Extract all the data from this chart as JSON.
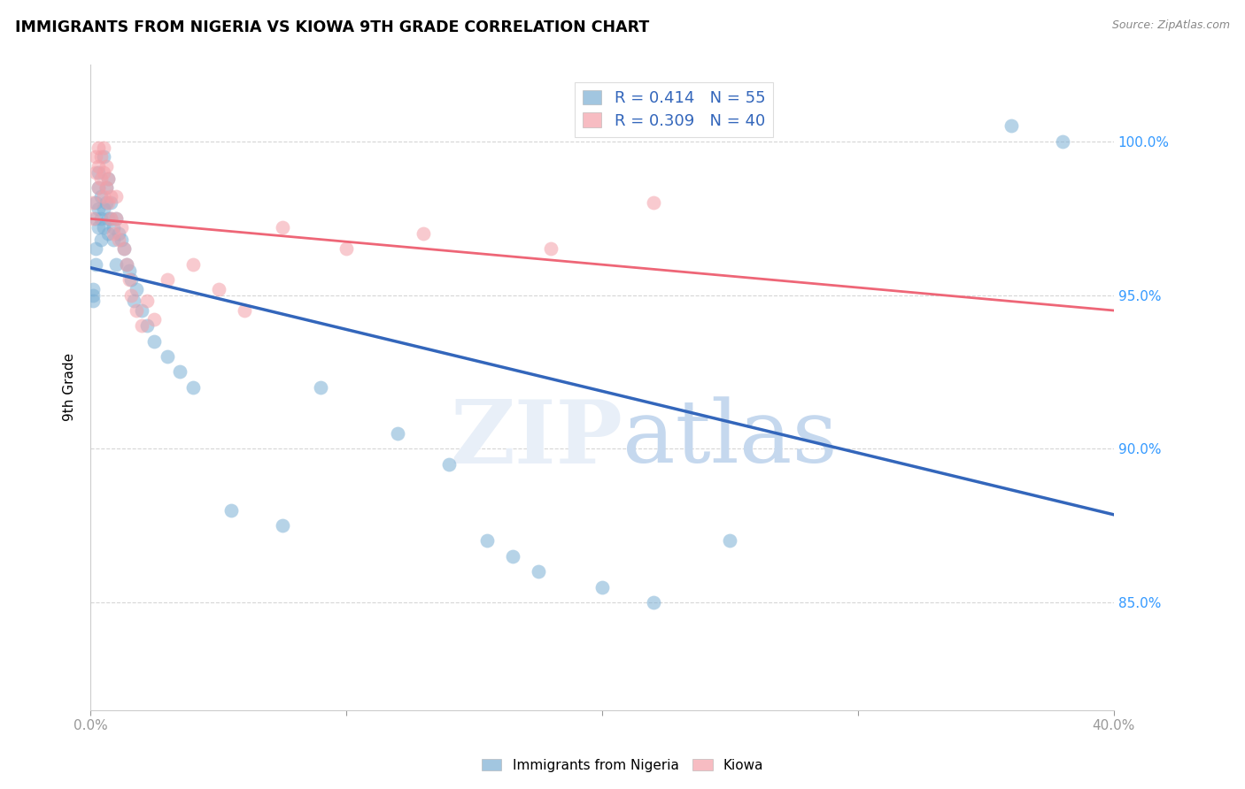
{
  "title": "IMMIGRANTS FROM NIGERIA VS KIOWA 9TH GRADE CORRELATION CHART",
  "source": "Source: ZipAtlas.com",
  "ylabel": "9th Grade",
  "blue_R": 0.414,
  "blue_N": 55,
  "pink_R": 0.309,
  "pink_N": 40,
  "blue_color": "#7BAFD4",
  "pink_color": "#F4A0A8",
  "blue_line_color": "#3366BB",
  "pink_line_color": "#EE6677",
  "blue_x": [
    0.001,
    0.001,
    0.001,
    0.002,
    0.002,
    0.002,
    0.002,
    0.003,
    0.003,
    0.003,
    0.003,
    0.004,
    0.004,
    0.004,
    0.005,
    0.005,
    0.005,
    0.006,
    0.006,
    0.007,
    0.007,
    0.007,
    0.008,
    0.008,
    0.009,
    0.009,
    0.01,
    0.01,
    0.011,
    0.012,
    0.013,
    0.014,
    0.015,
    0.016,
    0.017,
    0.018,
    0.02,
    0.022,
    0.025,
    0.03,
    0.035,
    0.04,
    0.055,
    0.075,
    0.09,
    0.12,
    0.14,
    0.155,
    0.165,
    0.175,
    0.2,
    0.22,
    0.25,
    0.36,
    0.38
  ],
  "blue_y": [
    0.95,
    0.952,
    0.948,
    0.965,
    0.96,
    0.975,
    0.98,
    0.972,
    0.978,
    0.985,
    0.99,
    0.968,
    0.975,
    0.982,
    0.972,
    0.978,
    0.995,
    0.98,
    0.985,
    0.97,
    0.975,
    0.988,
    0.975,
    0.98,
    0.968,
    0.972,
    0.96,
    0.975,
    0.97,
    0.968,
    0.965,
    0.96,
    0.958,
    0.955,
    0.948,
    0.952,
    0.945,
    0.94,
    0.935,
    0.93,
    0.925,
    0.92,
    0.88,
    0.875,
    0.92,
    0.905,
    0.895,
    0.87,
    0.865,
    0.86,
    0.855,
    0.85,
    0.87,
    1.005,
    1.0
  ],
  "pink_x": [
    0.001,
    0.001,
    0.002,
    0.002,
    0.003,
    0.003,
    0.003,
    0.004,
    0.004,
    0.005,
    0.005,
    0.005,
    0.006,
    0.006,
    0.007,
    0.007,
    0.008,
    0.008,
    0.009,
    0.01,
    0.01,
    0.011,
    0.012,
    0.013,
    0.014,
    0.015,
    0.016,
    0.018,
    0.02,
    0.022,
    0.025,
    0.03,
    0.04,
    0.05,
    0.06,
    0.075,
    0.1,
    0.13,
    0.18,
    0.22
  ],
  "pink_y": [
    0.975,
    0.98,
    0.99,
    0.995,
    0.985,
    0.992,
    0.998,
    0.988,
    0.995,
    0.982,
    0.99,
    0.998,
    0.985,
    0.992,
    0.98,
    0.988,
    0.975,
    0.982,
    0.97,
    0.975,
    0.982,
    0.968,
    0.972,
    0.965,
    0.96,
    0.955,
    0.95,
    0.945,
    0.94,
    0.948,
    0.942,
    0.955,
    0.96,
    0.952,
    0.945,
    0.972,
    0.965,
    0.97,
    0.965,
    0.98
  ],
  "xlim": [
    0.0,
    0.4
  ],
  "ylim": [
    0.815,
    1.025
  ],
  "yticks": [
    0.85,
    0.9,
    0.95,
    1.0
  ],
  "ytick_labels": [
    "85.0%",
    "90.0%",
    "95.0%",
    "100.0%"
  ],
  "xtick_positions": [
    0.0,
    0.1,
    0.2,
    0.3,
    0.4
  ],
  "xtick_labels": [
    "0.0%",
    "",
    "",
    "",
    "40.0%"
  ]
}
